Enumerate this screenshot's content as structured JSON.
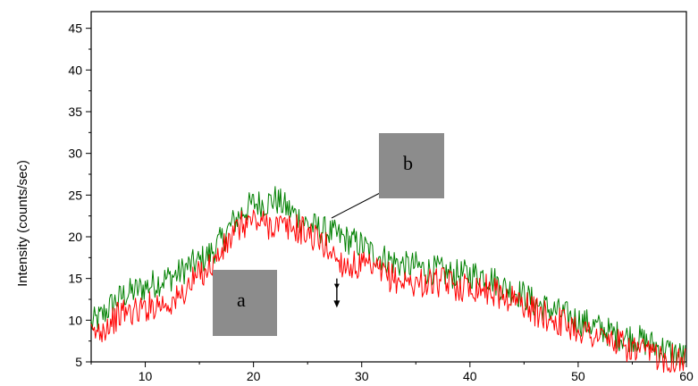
{
  "chart_data": {
    "type": "line",
    "title": "",
    "xlabel": "",
    "ylabel": "Intensity (counts/sec)",
    "xlim": [
      5,
      60
    ],
    "ylim": [
      5,
      47
    ],
    "xticks": [
      10,
      20,
      30,
      40,
      50,
      60
    ],
    "yticks": [
      5,
      10,
      15,
      20,
      25,
      30,
      35,
      40,
      45
    ],
    "grid": false,
    "legend": "none",
    "annotations": [
      {
        "text": "a",
        "x": 20,
        "y": 11
      },
      {
        "text": "b",
        "x": 36.5,
        "y": 29
      },
      {
        "text": "",
        "type": "arrow",
        "x": 27.7,
        "y_from": 15,
        "y_to": 11.5
      }
    ],
    "series": [
      {
        "color": "#008000",
        "x": [
          5,
          6,
          7,
          8,
          9,
          10,
          11,
          12,
          13,
          14,
          15,
          16,
          17,
          18,
          19,
          20,
          21,
          22,
          23,
          24,
          25,
          26,
          27,
          28,
          29,
          30,
          31,
          32,
          33,
          34,
          35,
          36,
          37,
          38,
          39,
          40,
          41,
          42,
          43,
          44,
          45,
          46,
          47,
          48,
          49,
          50,
          51,
          52,
          53,
          54,
          55,
          56,
          57,
          58,
          59,
          60
        ],
        "y": [
          9.5,
          10.5,
          12,
          13,
          13.5,
          14,
          14.5,
          15,
          15.5,
          16.5,
          17,
          18,
          19.5,
          21.5,
          23,
          24,
          24,
          24.5,
          23.5,
          22.5,
          21.5,
          21,
          20.5,
          20,
          19.5,
          19,
          18,
          17.5,
          17,
          16.5,
          16.5,
          16,
          16,
          15.5,
          15.5,
          15.5,
          15.5,
          15,
          14,
          13.5,
          13,
          12,
          11.5,
          11,
          10.5,
          10,
          9.5,
          9,
          8.5,
          8,
          8,
          7.5,
          7,
          6.5,
          6,
          5.5
        ]
      },
      {
        "color": "#ff0000",
        "x": [
          5,
          6,
          7,
          8,
          9,
          10,
          11,
          12,
          13,
          14,
          15,
          16,
          17,
          18,
          19,
          20,
          21,
          22,
          23,
          24,
          25,
          26,
          27,
          28,
          29,
          30,
          31,
          32,
          33,
          34,
          35,
          36,
          37,
          38,
          39,
          40,
          41,
          42,
          43,
          44,
          45,
          46,
          47,
          48,
          49,
          50,
          51,
          52,
          53,
          54,
          55,
          56,
          57,
          58,
          59,
          60
        ],
        "y": [
          8,
          9,
          10,
          11,
          11,
          11.5,
          12,
          12,
          12.5,
          14,
          15.5,
          16.5,
          18,
          20,
          21.5,
          22,
          21.5,
          21.5,
          21,
          21,
          20.5,
          19.5,
          18.5,
          17,
          16.5,
          16.5,
          16,
          15.5,
          15,
          14.5,
          14.5,
          14.5,
          14.5,
          14.5,
          14,
          14,
          14,
          13.5,
          13,
          12.5,
          12,
          11,
          10.5,
          10,
          9.5,
          9,
          8.5,
          8,
          7.5,
          7,
          6.5,
          6,
          6,
          5.5,
          5.5,
          5
        ]
      }
    ]
  }
}
